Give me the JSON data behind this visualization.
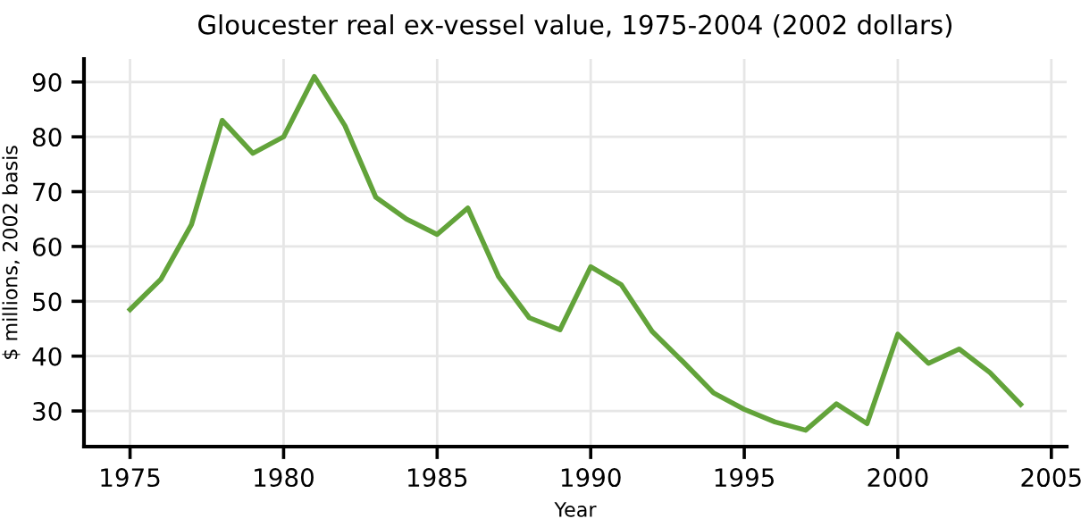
{
  "chart_data": {
    "type": "line",
    "title": "Gloucester real ex-vessel value, 1975-2004 (2002 dollars)",
    "xlabel": "Year",
    "ylabel": "$ millions, 2002 basis",
    "x": [
      1975,
      1976,
      1977,
      1978,
      1979,
      1980,
      1981,
      1982,
      1983,
      1984,
      1985,
      1986,
      1987,
      1988,
      1989,
      1990,
      1991,
      1992,
      1993,
      1994,
      1995,
      1996,
      1997,
      1998,
      1999,
      2000,
      2001,
      2002,
      2003,
      2004
    ],
    "series": [
      {
        "color": "#62a33a",
        "values": [
          48.5,
          54,
          64,
          83,
          77,
          80,
          91,
          82,
          69,
          65,
          62.2,
          67,
          54.5,
          47,
          44.8,
          56.3,
          53,
          44.5,
          39,
          33.3,
          30.3,
          28,
          26.5,
          31.3,
          27.7,
          44,
          38.7,
          41.3,
          37,
          31.2
        ]
      }
    ],
    "xlim": [
      1973.5,
      2005.5
    ],
    "xticks": [
      1975,
      1980,
      1985,
      1990,
      1995,
      2000,
      2005
    ],
    "ylim": [
      23.5,
      94.2
    ],
    "yticks": [
      30,
      40,
      50,
      60,
      70,
      80,
      90
    ],
    "grid": true,
    "marker": "none",
    "line_style": "solid",
    "legend": false
  }
}
